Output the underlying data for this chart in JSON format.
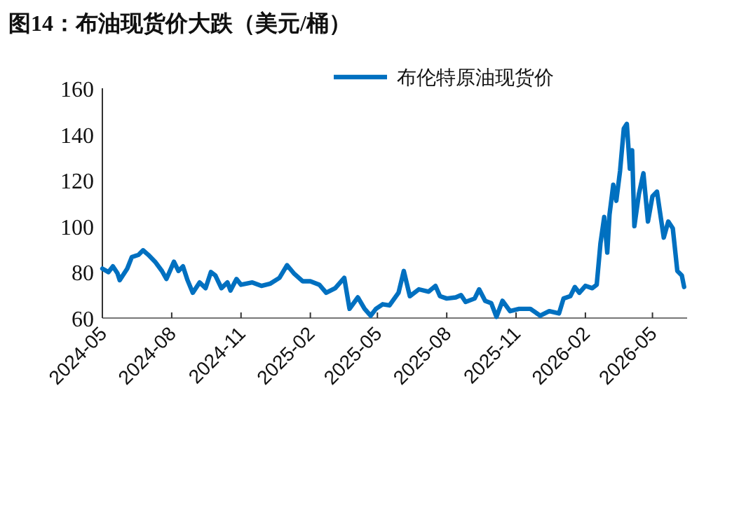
{
  "chart_data": {
    "type": "line",
    "title": "图14：布油现货价大跌（美元/桶）",
    "x": [
      "2024-05-01",
      "2024-05-09",
      "2024-05-15",
      "2024-05-21",
      "2024-05-24",
      "2024-06-03",
      "2024-06-09",
      "2024-06-18",
      "2024-06-24",
      "2024-07-01",
      "2024-07-10",
      "2024-07-19",
      "2024-07-25",
      "2024-08-04",
      "2024-08-10",
      "2024-08-16",
      "2024-08-22",
      "2024-08-29",
      "2024-09-07",
      "2024-09-15",
      "2024-09-22",
      "2024-09-28",
      "2024-10-06",
      "2024-10-14",
      "2024-10-18",
      "2024-10-26",
      "2024-11-01",
      "2024-11-16",
      "2024-11-28",
      "2024-12-10",
      "2024-12-22",
      "2025-01-01",
      "2025-01-10",
      "2025-01-22",
      "2025-02-01",
      "2025-02-13",
      "2025-02-22",
      "2025-03-06",
      "2025-03-18",
      "2025-03-25",
      "2025-04-05",
      "2025-04-14",
      "2025-04-22",
      "2025-04-29",
      "2025-05-08",
      "2025-05-17",
      "2025-05-29",
      "2025-06-05",
      "2025-06-13",
      "2025-06-25",
      "2025-07-08",
      "2025-07-17",
      "2025-07-23",
      "2025-08-01",
      "2025-08-13",
      "2025-08-20",
      "2025-08-26",
      "2025-09-07",
      "2025-09-13",
      "2025-09-21",
      "2025-09-29",
      "2025-10-06",
      "2025-10-14",
      "2025-10-24",
      "2025-11-05",
      "2025-11-20",
      "2025-12-03",
      "2025-12-15",
      "2025-12-28",
      "2026-01-03",
      "2026-01-12",
      "2026-01-18",
      "2026-01-24",
      "2026-02-01",
      "2026-02-10",
      "2026-02-16",
      "2026-02-21",
      "2026-02-26",
      "2026-03-02",
      "2026-03-05",
      "2026-03-10",
      "2026-03-14",
      "2026-03-19",
      "2026-03-24",
      "2026-03-28",
      "2026-04-01",
      "2026-04-04",
      "2026-04-07",
      "2026-04-13",
      "2026-04-19",
      "2026-04-25",
      "2026-05-01",
      "2026-05-07",
      "2026-05-16",
      "2026-05-22",
      "2026-05-28",
      "2026-06-03",
      "2026-06-09",
      "2026-06-12"
    ],
    "series": [
      {
        "name": "布伦特原油现货价",
        "color": "#0070c0",
        "values": [
          81.5,
          80,
          82.5,
          79.5,
          76.5,
          81.5,
          86.5,
          87.5,
          89.5,
          87.5,
          84.5,
          80.5,
          77,
          84.5,
          80.5,
          82.5,
          76.5,
          71,
          75.5,
          73,
          80,
          78.5,
          73,
          75.5,
          72,
          77,
          74.5,
          75.5,
          74,
          75,
          77.5,
          83,
          79.5,
          76,
          76,
          74.5,
          71,
          73,
          77.5,
          64,
          69,
          64,
          61,
          64,
          66,
          65.5,
          71,
          80.5,
          69.5,
          72.5,
          71.5,
          74,
          69.5,
          68.5,
          69,
          70,
          67,
          68.5,
          72.5,
          67.5,
          66.5,
          60.5,
          67.5,
          63,
          64,
          64,
          61,
          63,
          62,
          68.5,
          69.5,
          73.5,
          71,
          74,
          73,
          74.5,
          92.5,
          104,
          88.5,
          105,
          118,
          111,
          124,
          142.5,
          144.5,
          125,
          133,
          100,
          114,
          123,
          102,
          113,
          115,
          95,
          102,
          99,
          80.5,
          78.5,
          73.5
        ]
      }
    ],
    "xlim": [
      "2024-05-01",
      "2026-06-16"
    ],
    "xticks": [
      {
        "value": "2024-05-01",
        "label": "2024-05"
      },
      {
        "value": "2024-08-01",
        "label": "2024-08"
      },
      {
        "value": "2024-11-01",
        "label": "2024-11"
      },
      {
        "value": "2025-02-01",
        "label": "2025-02"
      },
      {
        "value": "2025-05-01",
        "label": "2025-05"
      },
      {
        "value": "2025-08-01",
        "label": "2025-08"
      },
      {
        "value": "2025-11-01",
        "label": "2025-11"
      },
      {
        "value": "2026-02-01",
        "label": "2026-02"
      },
      {
        "value": "2026-05-01",
        "label": "2026-05"
      }
    ],
    "ylim": [
      60,
      160
    ],
    "yticks": [
      60,
      80,
      100,
      120,
      140,
      160
    ],
    "legend": "top",
    "grid": false,
    "line_style": "solid",
    "marker": "none"
  }
}
